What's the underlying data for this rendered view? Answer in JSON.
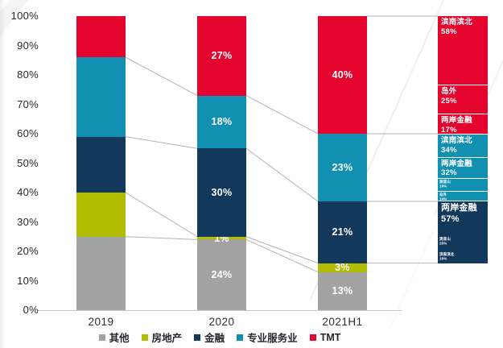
{
  "y_axis_ticks": [
    "100%",
    "90%",
    "80%",
    "70%",
    "60%",
    "50%",
    "40%",
    "30%",
    "20%",
    "10%",
    "0%"
  ],
  "chart_data": {
    "type": "bar",
    "variant": "stacked-100-percent",
    "title": "",
    "xlabel": "",
    "ylabel": "",
    "ylim": [
      0,
      100
    ],
    "grid": false,
    "legend_position": "bottom",
    "categories": [
      "2019",
      "2020",
      "2021H1"
    ],
    "series": [
      {
        "name": "其他",
        "color": "#a3a3a3",
        "values": [
          25,
          24,
          13
        ],
        "labels": [
          "",
          "24%",
          "13%"
        ]
      },
      {
        "name": "房地产",
        "color": "#b2bc00",
        "values": [
          15,
          1,
          3
        ],
        "labels": [
          "",
          "1%",
          "3%"
        ]
      },
      {
        "name": "金融",
        "color": "#12395c",
        "values": [
          19,
          30,
          21
        ],
        "labels": [
          "",
          "30%",
          "21%"
        ]
      },
      {
        "name": "专业服务业",
        "color": "#1190b2",
        "values": [
          27,
          18,
          23
        ],
        "labels": [
          "",
          "18%",
          "23%"
        ]
      },
      {
        "name": "TMT",
        "color": "#e4032c",
        "values": [
          14,
          27,
          40
        ],
        "labels": [
          "",
          "27%",
          "40%"
        ]
      }
    ],
    "breakdown_bar": {
      "aligned_to": "2021H1",
      "bottom_pct": 16,
      "top_pct": 100,
      "groups": [
        {
          "sector": "TMT",
          "color": "#e4032c",
          "total_pct": 40,
          "segments": [
            {
              "label": "滨南滨北",
              "value": "58%",
              "share": 58,
              "small": false
            },
            {
              "label": "岛外",
              "value": "25%",
              "share": 25,
              "small": false
            },
            {
              "label": "两岸金融",
              "value": "17%",
              "share": 17,
              "small": false
            }
          ]
        },
        {
          "sector": "专业服务业",
          "color": "#1190b2",
          "total_pct": 23,
          "segments": [
            {
              "label": "滨南滨北",
              "value": "34%",
              "share": 34,
              "small": false
            },
            {
              "label": "两岸金融",
              "value": "32%",
              "share": 32,
              "small": false
            },
            {
              "label": "观音山",
              "value": "19%",
              "share": 19,
              "small": true
            },
            {
              "label": "岛外",
              "value": "14%",
              "share": 14,
              "small": true
            }
          ]
        },
        {
          "sector": "金融",
          "color": "#12395c",
          "total_pct": 21,
          "segments": [
            {
              "label": "两岸金融",
              "value": "57%",
              "share": 57,
              "small": false
            },
            {
              "label": "观音山",
              "value": "25%",
              "share": 25,
              "small": true
            },
            {
              "label": "滨南滨北",
              "value": "19%",
              "share": 19,
              "small": true
            }
          ]
        }
      ]
    },
    "connector_color": "#b3b3b3"
  }
}
